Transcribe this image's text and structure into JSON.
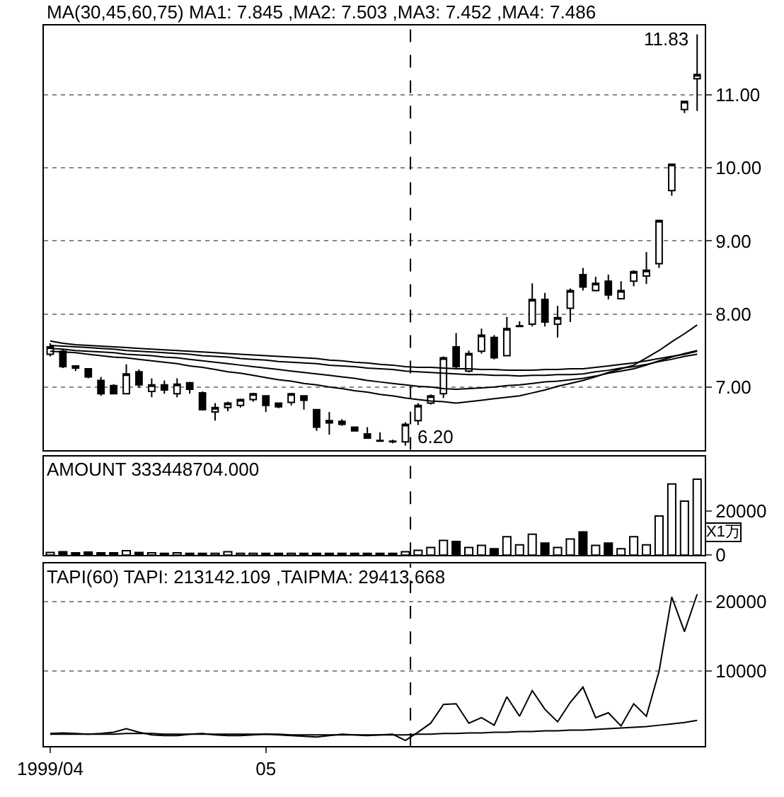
{
  "chart_data": [
    {
      "type": "candlestick",
      "title": "MA(30,45,60,75) MA1: 7.845 ,MA2: 7.503 ,MA3: 7.452 ,MA4: 7.486",
      "categories": [
        "1999/04",
        null,
        null,
        null,
        null,
        null,
        null,
        null,
        null,
        null,
        null,
        null,
        null,
        null,
        null,
        null,
        null,
        "05",
        null,
        null,
        null,
        null,
        null,
        null,
        null,
        null,
        null,
        null,
        null,
        null,
        null,
        null,
        null,
        null,
        null,
        null,
        null,
        null,
        null,
        null,
        null,
        null,
        null,
        null,
        null,
        null,
        null,
        null,
        null,
        null,
        null,
        null
      ],
      "ohlc": [
        [
          7.45,
          7.6,
          7.42,
          7.55
        ],
        [
          7.49,
          7.52,
          7.26,
          7.28
        ],
        [
          7.29,
          7.3,
          7.22,
          7.26
        ],
        [
          7.25,
          7.26,
          7.12,
          7.14
        ],
        [
          7.09,
          7.14,
          6.88,
          6.91
        ],
        [
          7.02,
          7.04,
          6.9,
          6.91
        ],
        [
          6.91,
          7.31,
          6.9,
          7.18
        ],
        [
          7.21,
          7.24,
          6.99,
          7.03
        ],
        [
          6.94,
          7.12,
          6.86,
          7.03
        ],
        [
          7.03,
          7.09,
          6.91,
          6.96
        ],
        [
          6.91,
          7.12,
          6.86,
          7.04
        ],
        [
          7.06,
          7.07,
          6.91,
          6.97
        ],
        [
          6.92,
          6.94,
          6.68,
          6.69
        ],
        [
          6.66,
          6.78,
          6.54,
          6.72
        ],
        [
          6.72,
          6.8,
          6.67,
          6.78
        ],
        [
          6.75,
          6.84,
          6.72,
          6.83
        ],
        [
          6.83,
          6.92,
          6.8,
          6.91
        ],
        [
          6.88,
          6.89,
          6.66,
          6.75
        ],
        [
          6.78,
          6.79,
          6.71,
          6.73
        ],
        [
          6.79,
          6.92,
          6.75,
          6.91
        ],
        [
          6.88,
          6.89,
          6.69,
          6.82
        ],
        [
          6.69,
          6.7,
          6.4,
          6.45
        ],
        [
          6.54,
          6.66,
          6.35,
          6.51
        ],
        [
          6.53,
          6.56,
          6.47,
          6.49
        ],
        [
          6.45,
          6.46,
          6.39,
          6.4
        ],
        [
          6.36,
          6.45,
          6.29,
          6.3
        ],
        [
          6.27,
          6.38,
          6.25,
          6.26
        ],
        [
          6.26,
          6.28,
          6.23,
          6.25
        ],
        [
          6.25,
          6.52,
          6.2,
          6.49
        ],
        [
          6.54,
          6.78,
          6.48,
          6.75
        ],
        [
          6.78,
          6.9,
          6.76,
          6.88
        ],
        [
          6.91,
          7.42,
          6.85,
          7.4
        ],
        [
          7.55,
          7.74,
          7.25,
          7.28
        ],
        [
          7.22,
          7.5,
          7.2,
          7.46
        ],
        [
          7.49,
          7.8,
          7.46,
          7.71
        ],
        [
          7.68,
          7.71,
          7.38,
          7.4
        ],
        [
          7.43,
          7.96,
          7.42,
          7.8
        ],
        [
          7.83,
          7.9,
          7.83,
          7.84
        ],
        [
          7.86,
          8.42,
          7.83,
          8.2
        ],
        [
          8.2,
          8.29,
          7.83,
          7.89
        ],
        [
          7.86,
          8.11,
          7.68,
          7.95
        ],
        [
          8.08,
          8.35,
          7.89,
          8.32
        ],
        [
          8.54,
          8.63,
          8.32,
          8.37
        ],
        [
          8.32,
          8.51,
          8.31,
          8.42
        ],
        [
          8.45,
          8.54,
          8.2,
          8.26
        ],
        [
          8.21,
          8.45,
          8.2,
          8.32
        ],
        [
          8.45,
          8.6,
          8.38,
          8.58
        ],
        [
          8.52,
          8.85,
          8.41,
          8.6
        ],
        [
          8.69,
          9.29,
          8.63,
          9.28
        ],
        [
          9.69,
          10.06,
          9.62,
          10.05
        ],
        [
          10.8,
          10.92,
          10.75,
          10.91
        ],
        [
          11.22,
          11.83,
          10.78,
          11.28
        ]
      ],
      "series": [
        {
          "type": "line",
          "color": "#000000",
          "values": [
            7.49,
            7.48,
            7.47,
            7.45,
            7.43,
            7.41,
            7.4,
            7.38,
            7.36,
            7.34,
            7.32,
            7.29,
            7.27,
            7.24,
            7.21,
            7.19,
            7.16,
            7.13,
            7.1,
            7.08,
            7.05,
            7.03,
            7.0,
            6.98,
            6.95,
            6.93,
            6.9,
            6.88,
            6.85,
            6.83,
            6.81,
            6.8,
            6.78,
            6.8,
            6.82,
            6.84,
            6.86,
            6.88,
            6.92,
            6.96,
            7.01,
            7.05,
            7.09,
            7.14,
            7.2,
            7.25,
            7.3,
            7.4,
            7.5,
            7.62,
            7.73,
            7.85
          ]
        },
        {
          "type": "line",
          "color": "#000000",
          "values": [
            7.53,
            7.52,
            7.5,
            7.49,
            7.48,
            7.47,
            7.45,
            7.44,
            7.43,
            7.41,
            7.4,
            7.38,
            7.36,
            7.34,
            7.32,
            7.3,
            7.28,
            7.26,
            7.24,
            7.22,
            7.2,
            7.18,
            7.16,
            7.14,
            7.12,
            7.09,
            7.07,
            7.05,
            7.03,
            7.01,
            7.0,
            6.98,
            6.97,
            6.98,
            6.99,
            7.0,
            7.02,
            7.03,
            7.05,
            7.07,
            7.08,
            7.1,
            7.12,
            7.15,
            7.19,
            7.22,
            7.25,
            7.3,
            7.36,
            7.41,
            7.46,
            7.5
          ]
        },
        {
          "type": "line",
          "color": "#000000",
          "values": [
            7.57,
            7.56,
            7.55,
            7.54,
            7.53,
            7.52,
            7.5,
            7.49,
            7.48,
            7.47,
            7.46,
            7.45,
            7.43,
            7.42,
            7.41,
            7.39,
            7.38,
            7.37,
            7.35,
            7.34,
            7.33,
            7.32,
            7.3,
            7.29,
            7.28,
            7.26,
            7.25,
            7.24,
            7.22,
            7.21,
            7.2,
            7.19,
            7.18,
            7.17,
            7.17,
            7.16,
            7.16,
            7.15,
            7.16,
            7.16,
            7.17,
            7.17,
            7.18,
            7.21,
            7.23,
            7.26,
            7.28,
            7.31,
            7.35,
            7.38,
            7.42,
            7.45
          ]
        },
        {
          "type": "line",
          "color": "#000000",
          "values": [
            7.63,
            7.6,
            7.58,
            7.57,
            7.56,
            7.55,
            7.54,
            7.53,
            7.52,
            7.51,
            7.5,
            7.49,
            7.48,
            7.47,
            7.46,
            7.45,
            7.44,
            7.43,
            7.42,
            7.41,
            7.4,
            7.39,
            7.37,
            7.36,
            7.34,
            7.33,
            7.31,
            7.3,
            7.28,
            7.27,
            7.27,
            7.26,
            7.25,
            7.25,
            7.24,
            7.24,
            7.23,
            7.23,
            7.23,
            7.24,
            7.24,
            7.25,
            7.25,
            7.27,
            7.29,
            7.31,
            7.33,
            7.36,
            7.39,
            7.42,
            7.45,
            7.49
          ]
        }
      ],
      "ylim": [
        6.14,
        11.95
      ],
      "yticks": [
        {
          "value": 7,
          "label": "7.00"
        },
        {
          "value": 8,
          "label": "8.00"
        },
        {
          "value": 9,
          "label": "9.00"
        },
        {
          "value": 10,
          "label": "10.00"
        },
        {
          "value": 11,
          "label": "11.00"
        }
      ],
      "annotations": [
        "11.83",
        "6.20"
      ],
      "grid": "y",
      "tick_labels": "y"
    },
    {
      "type": "bar",
      "title": "AMOUNT 333448704.000",
      "ylabel": "X1万",
      "categories": [
        "1999/04",
        null,
        null,
        null,
        null,
        null,
        null,
        null,
        null,
        null,
        null,
        null,
        null,
        null,
        null,
        null,
        null,
        "05",
        null,
        null,
        null,
        null,
        null,
        null,
        null,
        null,
        null,
        null,
        null,
        null,
        null,
        null,
        null,
        null,
        null,
        null,
        null,
        null,
        null,
        null,
        null,
        null,
        null,
        null,
        null,
        null,
        null,
        null,
        null,
        null,
        null,
        null
      ],
      "values": [
        1200,
        1500,
        1000,
        1400,
        1000,
        1000,
        2000,
        1200,
        1000,
        800,
        1000,
        800,
        800,
        800,
        1500,
        800,
        800,
        800,
        800,
        800,
        800,
        800,
        800,
        800,
        800,
        800,
        800,
        800,
        1500,
        2200,
        3500,
        6700,
        6200,
        3500,
        4400,
        2900,
        8400,
        4700,
        9500,
        5500,
        3500,
        7300,
        10600,
        4400,
        5500,
        2900,
        8400,
        4700,
        17800,
        32400,
        24600,
        34600
      ],
      "colors": [
        "#ffffff",
        "#000000",
        "#000000",
        "#000000",
        "#000000",
        "#000000",
        "#ffffff",
        "#000000",
        "#ffffff",
        "#000000",
        "#ffffff",
        "#000000",
        "#000000",
        "#ffffff",
        "#ffffff",
        "#ffffff",
        "#ffffff",
        "#000000",
        "#000000",
        "#ffffff",
        "#000000",
        "#000000",
        "#000000",
        "#000000",
        "#000000",
        "#000000",
        "#000000",
        "#000000",
        "#ffffff",
        "#ffffff",
        "#ffffff",
        "#ffffff",
        "#000000",
        "#ffffff",
        "#ffffff",
        "#000000",
        "#ffffff",
        "#ffffff",
        "#ffffff",
        "#000000",
        "#ffffff",
        "#ffffff",
        "#000000",
        "#ffffff",
        "#000000",
        "#ffffff",
        "#ffffff",
        "#ffffff",
        "#ffffff",
        "#ffffff",
        "#ffffff",
        "#ffffff"
      ],
      "ylim": [
        0,
        45000
      ],
      "yticks": [
        0,
        20000
      ],
      "tick_labels": "y"
    },
    {
      "type": "line",
      "title": "TAPI(60) TAPI: 213142.109 ,TAIPMA: 29413.668",
      "categories": [
        "1999/04",
        null,
        null,
        null,
        null,
        null,
        null,
        null,
        null,
        null,
        null,
        null,
        null,
        null,
        null,
        null,
        null,
        "05",
        null,
        null,
        null,
        null,
        null,
        null,
        null,
        null,
        null,
        null,
        null,
        null,
        null,
        null,
        null,
        null,
        null,
        null,
        null,
        null,
        null,
        null,
        null,
        null,
        null,
        null,
        null,
        null,
        null,
        null,
        null,
        null,
        null,
        null
      ],
      "series": [
        {
          "color": "#000000",
          "values": [
            1000,
            1100,
            1000,
            900,
            1000,
            1200,
            1700,
            1200,
            800,
            700,
            700,
            900,
            1000,
            800,
            700,
            700,
            800,
            900,
            800,
            700,
            600,
            500,
            700,
            900,
            800,
            700,
            800,
            900,
            0,
            1200,
            2500,
            5200,
            5300,
            2500,
            3300,
            2200,
            6300,
            3500,
            7200,
            4500,
            2700,
            5500,
            7700,
            3300,
            4000,
            2100,
            5300,
            3500,
            10000,
            20700,
            15700,
            21100
          ]
        },
        {
          "color": "#000000",
          "values": [
            900,
            900,
            900,
            900,
            900,
            900,
            1000,
            1000,
            1000,
            900,
            900,
            900,
            900,
            900,
            900,
            900,
            900,
            900,
            900,
            800,
            800,
            800,
            800,
            800,
            800,
            800,
            800,
            800,
            800,
            900,
            900,
            1000,
            1000,
            1100,
            1100,
            1200,
            1200,
            1300,
            1300,
            1400,
            1400,
            1500,
            1500,
            1600,
            1700,
            1800,
            1900,
            2000,
            2200,
            2400,
            2600,
            2900
          ]
        }
      ],
      "ylim": [
        -800,
        25500
      ],
      "yticks": [
        10000,
        20000
      ],
      "grid": "y"
    }
  ]
}
